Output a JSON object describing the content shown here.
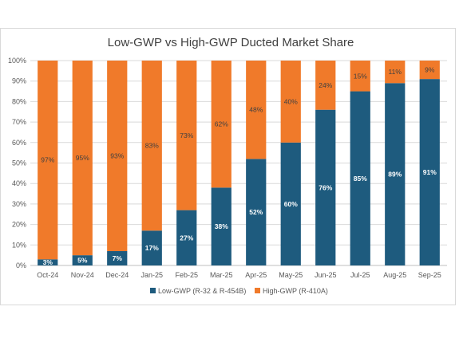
{
  "chart_data": {
    "type": "bar",
    "stacked": true,
    "percent_stacked": true,
    "title": "Low-GWP vs High-GWP Ducted Market Share",
    "xlabel": "",
    "ylabel": "",
    "ylim": [
      0,
      100
    ],
    "yticks": [
      "0%",
      "10%",
      "20%",
      "30%",
      "40%",
      "50%",
      "60%",
      "70%",
      "80%",
      "90%",
      "100%"
    ],
    "grid": "horizontal",
    "legend_position": "bottom",
    "categories": [
      "Oct-24",
      "Nov-24",
      "Dec-24",
      "Jan-25",
      "Feb-25",
      "Mar-25",
      "Apr-25",
      "May-25",
      "Jun-25",
      "Jul-25",
      "Aug-25",
      "Sep-25"
    ],
    "series": [
      {
        "name": "Low-GWP (R-32 & R-454B)",
        "color": "#1e5b7e",
        "values": [
          3,
          5,
          7,
          17,
          27,
          38,
          52,
          60,
          76,
          85,
          89,
          91
        ],
        "labels": [
          "3%",
          "5%",
          "7%",
          "17%",
          "27%",
          "38%",
          "52%",
          "60%",
          "76%",
          "85%",
          "89%",
          "91%"
        ]
      },
      {
        "name": "High-GWP (R-410A)",
        "color": "#f07a2a",
        "values": [
          97,
          95,
          93,
          83,
          73,
          62,
          48,
          40,
          24,
          15,
          11,
          9
        ],
        "labels": [
          "97%",
          "95%",
          "93%",
          "83%",
          "73%",
          "62%",
          "48%",
          "40%",
          "24%",
          "15%",
          "11%",
          "9%"
        ]
      }
    ]
  }
}
